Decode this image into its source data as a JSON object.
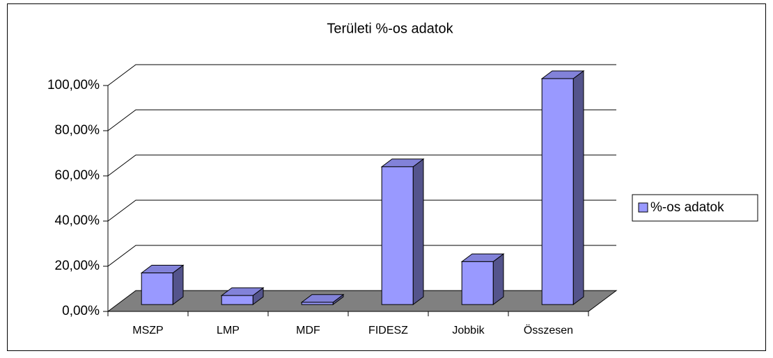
{
  "chart_data": {
    "type": "bar",
    "title": "Területi %-os adatok",
    "categories": [
      "MSZP",
      "LMP",
      "MDF",
      "FIDESZ",
      "Jobbik",
      "Összesen"
    ],
    "series": [
      {
        "name": "%-os adatok",
        "color": "#9999ff",
        "values": [
          14,
          4,
          1,
          61,
          19,
          100
        ]
      }
    ],
    "ylim": [
      0,
      100
    ],
    "yticks": [
      {
        "value": 0,
        "label": "0,00%"
      },
      {
        "value": 20,
        "label": "20,00%"
      },
      {
        "value": 40,
        "label": "40,00%"
      },
      {
        "value": 60,
        "label": "60,00%"
      },
      {
        "value": 80,
        "label": "80,00%"
      },
      {
        "value": 100,
        "label": "100,00%"
      }
    ],
    "grid": true,
    "legend": "right"
  }
}
